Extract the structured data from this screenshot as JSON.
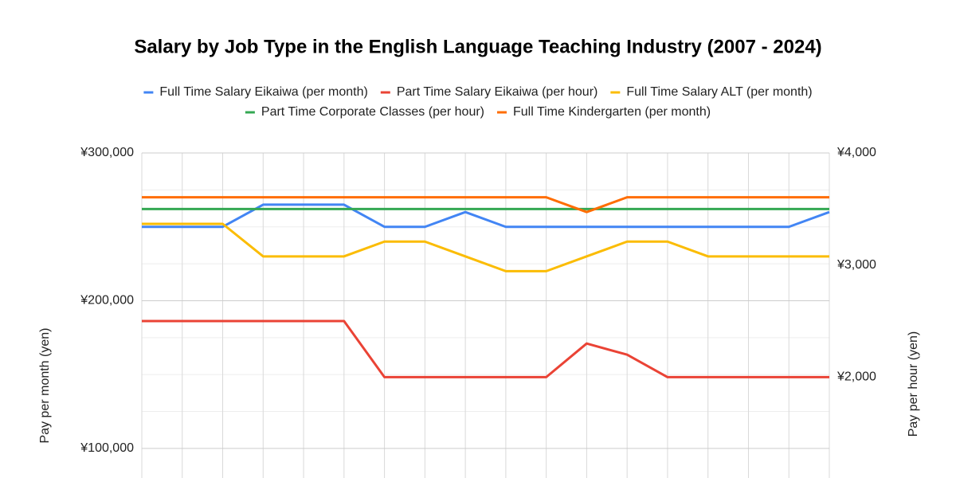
{
  "chart_data": {
    "type": "line",
    "title": "Salary by Job Type in the English Language Teaching Industry (2007 - 2024)",
    "y_label": "Pay per month (yen)",
    "y2_label": "Pay per hour (yen)",
    "categories": [
      null,
      null,
      null,
      null,
      null,
      null,
      null,
      null,
      null,
      null,
      null,
      null,
      null,
      null,
      null,
      null,
      null,
      null
    ],
    "series": [
      {
        "name": "Full Time Salary Eikaiwa (per month)",
        "color": "#4285f4",
        "values": [
          250000,
          250000,
          250000,
          265000,
          265000,
          265000,
          250000,
          250000,
          260000,
          250000,
          250000,
          250000,
          250000,
          250000,
          250000,
          250000,
          250000,
          260000
        ]
      },
      {
        "name": "Part Time Salary Eikaiwa (per hour)",
        "color": "#ea4335",
        "axis": "y2",
        "values": [
          2500,
          2500,
          2500,
          2500,
          2500,
          2500,
          2000,
          2000,
          2000,
          2000,
          2000,
          2300,
          2200,
          2000,
          2000,
          2000,
          2000,
          2000
        ]
      },
      {
        "name": "Full Time Salary ALT (per month)",
        "color": "#fbbc04",
        "values": [
          252000,
          252000,
          252000,
          230000,
          230000,
          230000,
          240000,
          240000,
          230000,
          220000,
          220000,
          230000,
          240000,
          240000,
          230000,
          230000,
          230000,
          230000
        ]
      },
      {
        "name": "Part Time Corporate Classes (per hour)",
        "color": "#34a853",
        "axis": "y2",
        "values": [
          3500,
          3500,
          3500,
          3500,
          3500,
          3500,
          3500,
          3500,
          3500,
          3500,
          3500,
          3500,
          3500,
          3500,
          3500,
          3500,
          3500,
          3500
        ]
      },
      {
        "name": "Full Time Kindergarten (per month)",
        "color": "#ff6d01",
        "values": [
          270000,
          270000,
          270000,
          270000,
          270000,
          270000,
          270000,
          270000,
          270000,
          270000,
          270000,
          260000,
          270000,
          270000,
          270000,
          270000,
          270000,
          270000
        ]
      }
    ],
    "ylim": [
      80000,
      300000
    ],
    "yticks": [
      {
        "value": 100000,
        "label": "¥100,000"
      },
      {
        "value": 200000,
        "label": "¥200,000"
      },
      {
        "value": 300000,
        "label": "¥300,000"
      }
    ],
    "y2lim": [
      1100,
      4000
    ],
    "y2ticks": [
      {
        "value": 2000,
        "label": "¥2,000"
      },
      {
        "value": 3000,
        "label": "¥3,000"
      },
      {
        "value": 4000,
        "label": "¥4,000"
      }
    ],
    "grid": true,
    "legend": "top"
  }
}
